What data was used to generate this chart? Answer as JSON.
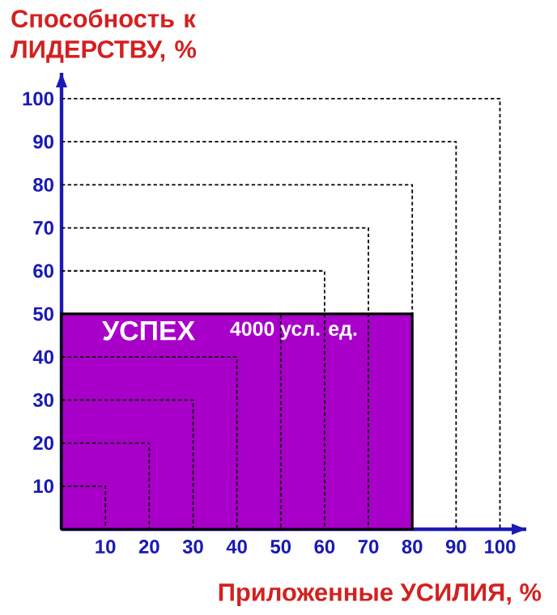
{
  "chart_data": {
    "type": "line",
    "xlabel": "Приложенные УСИЛИЯ, %",
    "ylabel": "Способность к ЛИДЕРСТВУ, %",
    "annotations": [
      "УСПЕХ",
      "4000 усл. ед."
    ],
    "xlim": [
      0,
      106
    ],
    "ylim": [
      0,
      106
    ],
    "xticks": [
      10,
      20,
      30,
      40,
      50,
      60,
      70,
      80,
      90,
      100
    ],
    "yticks": [
      10,
      20,
      30,
      40,
      50,
      60,
      70,
      80,
      90,
      100
    ],
    "marker": "none",
    "series": [
      {
        "type": "area",
        "color": "#a800c8",
        "x": [
          0,
          80
        ],
        "values": [
          50,
          50
        ],
        "line_style": "solid"
      },
      {
        "color": "#000000",
        "line_style": "dashed",
        "x": [
          0,
          10,
          10
        ],
        "values": [
          10,
          10,
          0
        ]
      },
      {
        "color": "#000000",
        "line_style": "dashed",
        "x": [
          0,
          20,
          20
        ],
        "values": [
          20,
          20,
          0
        ]
      },
      {
        "color": "#000000",
        "line_style": "dashed",
        "x": [
          0,
          30,
          30
        ],
        "values": [
          30,
          30,
          0
        ]
      },
      {
        "color": "#000000",
        "line_style": "dashed",
        "x": [
          0,
          40,
          40
        ],
        "values": [
          40,
          40,
          0
        ]
      },
      {
        "color": "#000000",
        "line_style": "dashed",
        "x": [
          0,
          50,
          50
        ],
        "values": [
          50,
          50,
          0
        ]
      },
      {
        "color": "#000000",
        "line_style": "dashed",
        "x": [
          0,
          60,
          60
        ],
        "values": [
          60,
          60,
          0
        ]
      },
      {
        "color": "#000000",
        "line_style": "dashed",
        "x": [
          0,
          70,
          70
        ],
        "values": [
          70,
          70,
          0
        ]
      },
      {
        "color": "#000000",
        "line_style": "dashed",
        "x": [
          0,
          80,
          80
        ],
        "values": [
          80,
          80,
          0
        ]
      },
      {
        "color": "#000000",
        "line_style": "dashed",
        "x": [
          0,
          90,
          90
        ],
        "values": [
          90,
          90,
          0
        ]
      },
      {
        "color": "#000000",
        "line_style": "dashed",
        "x": [
          0,
          100,
          100
        ],
        "values": [
          100,
          100,
          0
        ]
      }
    ]
  }
}
